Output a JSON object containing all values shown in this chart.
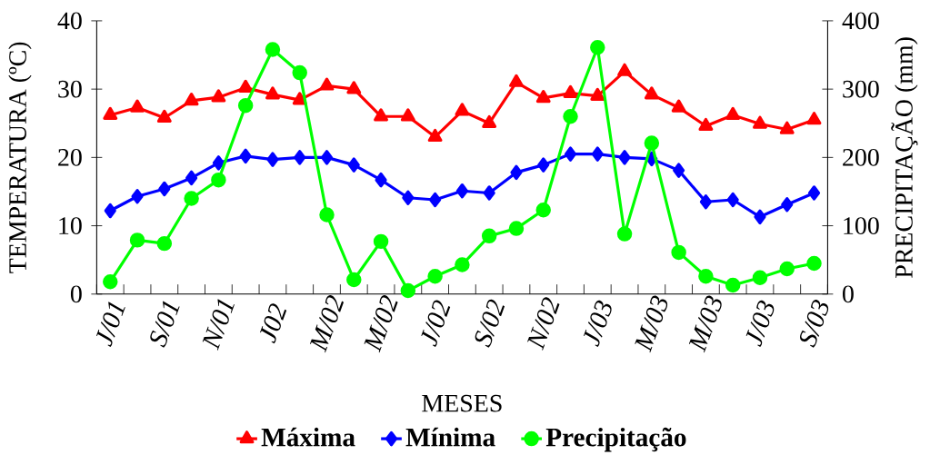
{
  "chart_data": {
    "type": "line",
    "xlabel": "MESES",
    "ylabel": "TEMPERATURA (ºC)",
    "y2label": "PRECIPITAÇÃO (mm)",
    "categories": [
      "J/01",
      null,
      "S/01",
      null,
      "N/01",
      null,
      "J02",
      null,
      "M/02",
      null,
      "M/02",
      null,
      "J/02",
      null,
      "S/02",
      null,
      "N/02",
      null,
      "J/03",
      null,
      "M/03",
      null,
      "M/03",
      null,
      "J/03",
      null,
      "S/03"
    ],
    "ylim": [
      0,
      40
    ],
    "yticks": [
      0,
      10,
      20,
      30,
      40
    ],
    "y2lim": [
      0,
      400
    ],
    "y2ticks": [
      0,
      100,
      200,
      300,
      400
    ],
    "legend": "bottom",
    "line_style": "solid",
    "series": [
      {
        "name": "Máxima",
        "color": "#ff0000",
        "marker": "triangle",
        "values": [
          26.2,
          27.3,
          25.8,
          28.3,
          28.8,
          30.2,
          29.2,
          28.4,
          30.5,
          30.0,
          26.0,
          26.0,
          23.0,
          26.8,
          25.0,
          31.0,
          28.7,
          29.4,
          29.0,
          32.6,
          29.2,
          27.3,
          24.6,
          26.2,
          24.9,
          24.1,
          25.5
        ]
      },
      {
        "name": "Mínima",
        "color": "#0000ff",
        "marker": "diamond",
        "values": [
          12.2,
          14.3,
          15.4,
          17.0,
          19.2,
          20.2,
          19.7,
          20.0,
          20.0,
          18.9,
          16.7,
          14.1,
          13.8,
          15.1,
          14.8,
          17.8,
          18.9,
          20.5,
          20.5,
          20.0,
          19.8,
          18.1,
          13.5,
          13.8,
          11.3,
          13.1,
          14.8
        ]
      },
      {
        "name": "Precipitação",
        "color": "#00ff00",
        "marker": "circle",
        "axis": "y2",
        "values": [
          18,
          79,
          74,
          140,
          167,
          276,
          358,
          324,
          116,
          21,
          77,
          5,
          26,
          43,
          85,
          96,
          123,
          260,
          361,
          88,
          221,
          61,
          26,
          13,
          24,
          37,
          45
        ]
      }
    ]
  }
}
